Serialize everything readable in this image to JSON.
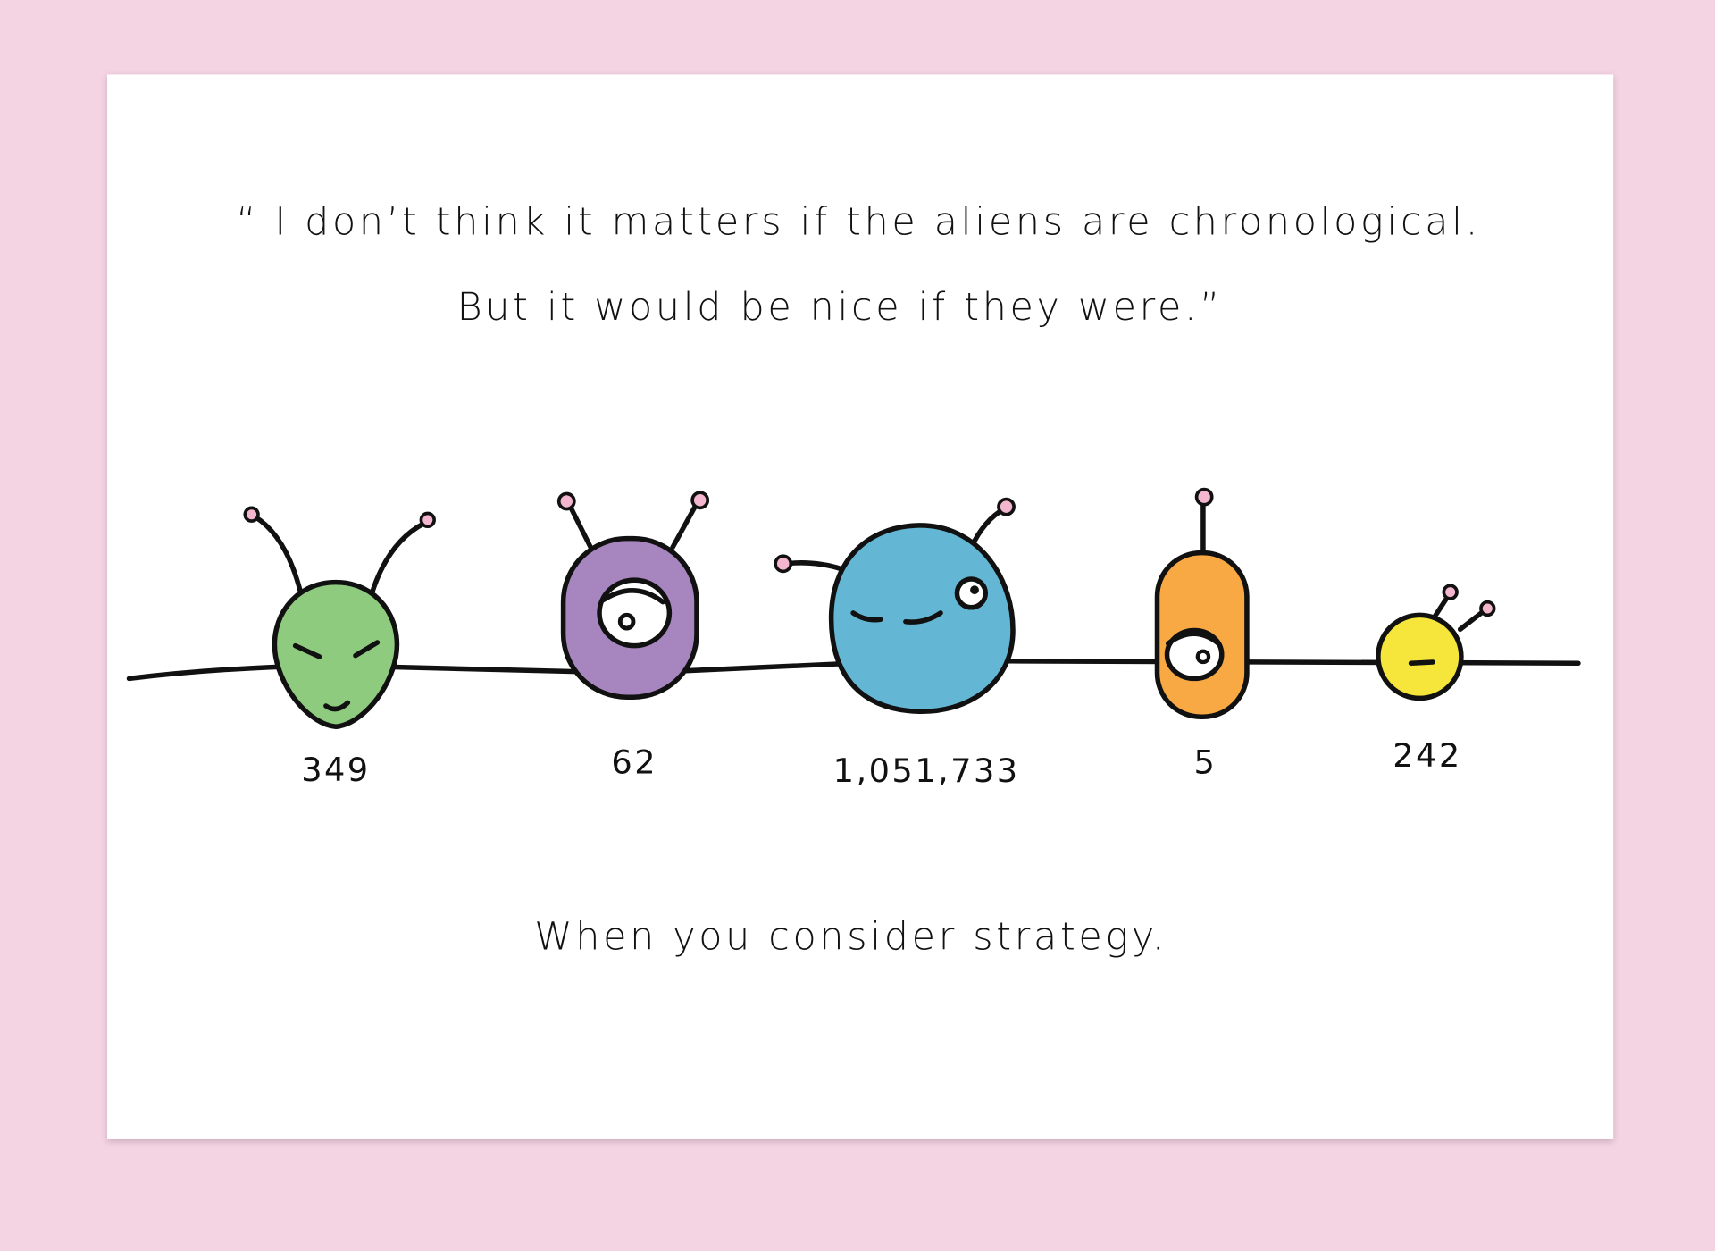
{
  "quote": {
    "lines": [
      "“ I don’t think it matters if the aliens are chronological.",
      "But it would be nice if they were.”"
    ]
  },
  "aliens": [
    {
      "label": "349"
    },
    {
      "label": "62"
    },
    {
      "label": "1,051,733"
    },
    {
      "label": "5"
    },
    {
      "label": "242"
    }
  ],
  "caption": "When you consider strategy."
}
